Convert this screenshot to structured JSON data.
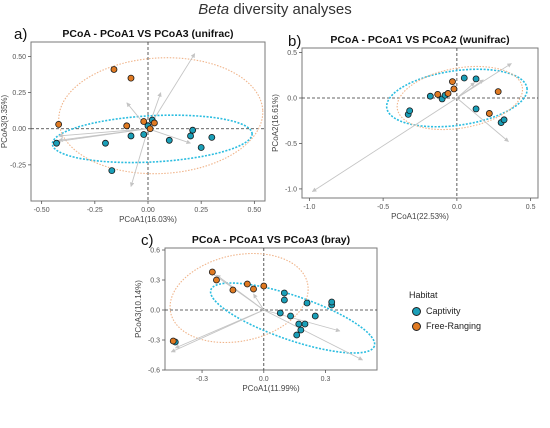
{
  "figure": {
    "title_italic": "Beta",
    "title_rest": " diversity analyses"
  },
  "colors": {
    "captivity": "#1a9fb8",
    "free_ranging": "#e07a22",
    "ellipse_captivity": "#2bbde0",
    "ellipse_free_ranging": "#f0b48a",
    "arrow": "#c4c4c4",
    "frame": "#7a7a7a"
  },
  "legend": {
    "title": "Habitat",
    "items": [
      {
        "label": "Captivity",
        "color": "#1a9fb8"
      },
      {
        "label": "Free-Ranging",
        "color": "#e07a22"
      }
    ]
  },
  "chart_data": [
    {
      "type": "scatter",
      "panel_label": "a)",
      "title": "PCoA - PCoA1 VS PCoA3 (unifrac)",
      "xlabel": "PCoA1(16.03%)",
      "ylabel": "PCoA3(9.35%)",
      "xlim": [
        -0.55,
        0.55
      ],
      "ylim": [
        -0.5,
        0.6
      ],
      "xticks": [
        -0.5,
        -0.25,
        0,
        0.25,
        0.5
      ],
      "xtick_labels": [
        "-0.50",
        "-0.25",
        "0.00",
        "0.25",
        "0.50"
      ],
      "yticks": [
        -0.25,
        0,
        0.25,
        0.5
      ],
      "ytick_labels": [
        "-0.25",
        "0.00",
        "0.25",
        "0.50"
      ],
      "series": [
        {
          "name": "Captivity",
          "points": [
            [
              -0.43,
              -0.1
            ],
            [
              -0.2,
              -0.1
            ],
            [
              -0.17,
              -0.29
            ],
            [
              -0.08,
              -0.05
            ],
            [
              -0.02,
              -0.04
            ],
            [
              0.0,
              0.02
            ],
            [
              0.02,
              0.06
            ],
            [
              0.1,
              -0.08
            ],
            [
              0.2,
              -0.05
            ],
            [
              0.21,
              -0.01
            ],
            [
              0.25,
              -0.13
            ],
            [
              0.3,
              -0.06
            ]
          ]
        },
        {
          "name": "Free-Ranging",
          "points": [
            [
              -0.42,
              0.03
            ],
            [
              -0.16,
              0.41
            ],
            [
              -0.1,
              0.02
            ],
            [
              -0.08,
              0.35
            ],
            [
              -0.02,
              0.05
            ],
            [
              0.01,
              0.0
            ],
            [
              0.03,
              0.04
            ]
          ]
        }
      ],
      "arrows": [
        [
          -0.42,
          -0.05
        ],
        [
          -0.42,
          -0.08
        ],
        [
          -0.43,
          -0.09
        ],
        [
          -0.1,
          0.18
        ],
        [
          0.22,
          0.52
        ],
        [
          -0.08,
          -0.4
        ],
        [
          0.06,
          0.25
        ],
        [
          0.2,
          -0.1
        ]
      ],
      "ellipses": [
        {
          "group": "Captivity",
          "cx": 0.02,
          "cy": -0.07,
          "rx": 0.47,
          "ry": 0.16,
          "angle": -3
        },
        {
          "group": "Free-Ranging",
          "cx": 0.06,
          "cy": 0.09,
          "rx": 0.48,
          "ry": 0.4,
          "angle": -3
        }
      ]
    },
    {
      "type": "scatter",
      "panel_label": "b)",
      "title": "PCoA - PCoA1 VS PCoA2 (wunifrac)",
      "xlabel": "PCoA1(22.53%)",
      "ylabel": "PCoA2(16.61%)",
      "xlim": [
        -1.05,
        0.55
      ],
      "ylim": [
        -1.1,
        0.55
      ],
      "xticks": [
        -1.0,
        -0.5,
        0,
        0.5
      ],
      "xtick_labels": [
        "-1.0",
        "-0.5",
        "0.0",
        "0.5"
      ],
      "yticks": [
        -1.0,
        -0.5,
        0,
        0.5
      ],
      "ytick_labels": [
        "-1.0",
        "-0.5",
        "0.0",
        "0.5"
      ],
      "series": [
        {
          "name": "Captivity",
          "points": [
            [
              -0.33,
              -0.18
            ],
            [
              -0.32,
              -0.14
            ],
            [
              -0.18,
              0.02
            ],
            [
              -0.1,
              -0.01
            ],
            [
              -0.08,
              0.03
            ],
            [
              0.05,
              0.22
            ],
            [
              0.13,
              0.21
            ],
            [
              0.13,
              -0.12
            ],
            [
              0.3,
              -0.27
            ],
            [
              0.32,
              -0.24
            ]
          ]
        },
        {
          "name": "Free-Ranging",
          "points": [
            [
              -0.13,
              0.04
            ],
            [
              -0.06,
              0.05
            ],
            [
              -0.03,
              0.18
            ],
            [
              -0.02,
              0.1
            ],
            [
              0.22,
              -0.17
            ],
            [
              0.28,
              0.07
            ]
          ]
        }
      ],
      "arrows": [
        [
          -0.98,
          -1.03
        ],
        [
          0.35,
          -0.48
        ],
        [
          0.37,
          0.38
        ],
        [
          0.12,
          0.17
        ],
        [
          0.18,
          0.2
        ]
      ],
      "ellipses": [
        {
          "group": "Captivity",
          "cx": 0.0,
          "cy": 0.0,
          "rx": 0.48,
          "ry": 0.3,
          "angle": -8
        },
        {
          "group": "Free-Ranging",
          "cx": 0.02,
          "cy": 0.0,
          "rx": 0.43,
          "ry": 0.33,
          "angle": -10
        }
      ]
    },
    {
      "type": "scatter",
      "panel_label": "c)",
      "title": "PCoA - PCoA1 VS PCoA3 (bray)",
      "xlabel": "PCoA1(11.99%)",
      "ylabel": "PCoA3(10.14%)",
      "xlim": [
        -0.48,
        0.55
      ],
      "ylim": [
        -0.6,
        0.62
      ],
      "xticks": [
        -0.3,
        0,
        0.3
      ],
      "xtick_labels": [
        "-0.3",
        "0.0",
        "0.3"
      ],
      "yticks": [
        -0.6,
        -0.3,
        0,
        0.3,
        0.6
      ],
      "ytick_labels": [
        "-0.6",
        "-0.3",
        "0.0",
        "0.3",
        "0.6"
      ],
      "series": [
        {
          "name": "Captivity",
          "points": [
            [
              -0.43,
              -0.32
            ],
            [
              0.08,
              -0.03
            ],
            [
              0.1,
              0.17
            ],
            [
              0.1,
              0.1
            ],
            [
              0.13,
              -0.06
            ],
            [
              0.16,
              -0.25
            ],
            [
              0.17,
              -0.14
            ],
            [
              0.18,
              -0.2
            ],
            [
              0.2,
              -0.14
            ],
            [
              0.21,
              0.07
            ],
            [
              0.25,
              -0.06
            ],
            [
              0.33,
              0.05
            ],
            [
              0.33,
              0.08
            ]
          ]
        },
        {
          "name": "Free-Ranging",
          "points": [
            [
              -0.44,
              -0.31
            ],
            [
              -0.25,
              0.38
            ],
            [
              -0.23,
              0.3
            ],
            [
              -0.15,
              0.2
            ],
            [
              -0.08,
              0.26
            ],
            [
              -0.05,
              0.21
            ],
            [
              0.0,
              0.24
            ]
          ]
        }
      ],
      "arrows": [
        [
          -0.45,
          -0.42
        ],
        [
          -0.43,
          -0.38
        ],
        [
          -0.26,
          0.38
        ],
        [
          -0.23,
          0.35
        ],
        [
          0.37,
          -0.21
        ],
        [
          0.48,
          -0.5
        ],
        [
          -0.05,
          0.16
        ]
      ],
      "ellipses": [
        {
          "group": "Captivity",
          "cx": 0.14,
          "cy": -0.08,
          "rx": 0.42,
          "ry": 0.22,
          "angle": 19
        },
        {
          "group": "Free-Ranging",
          "cx": -0.12,
          "cy": 0.12,
          "rx": 0.34,
          "ry": 0.43,
          "angle": -12
        }
      ]
    }
  ]
}
